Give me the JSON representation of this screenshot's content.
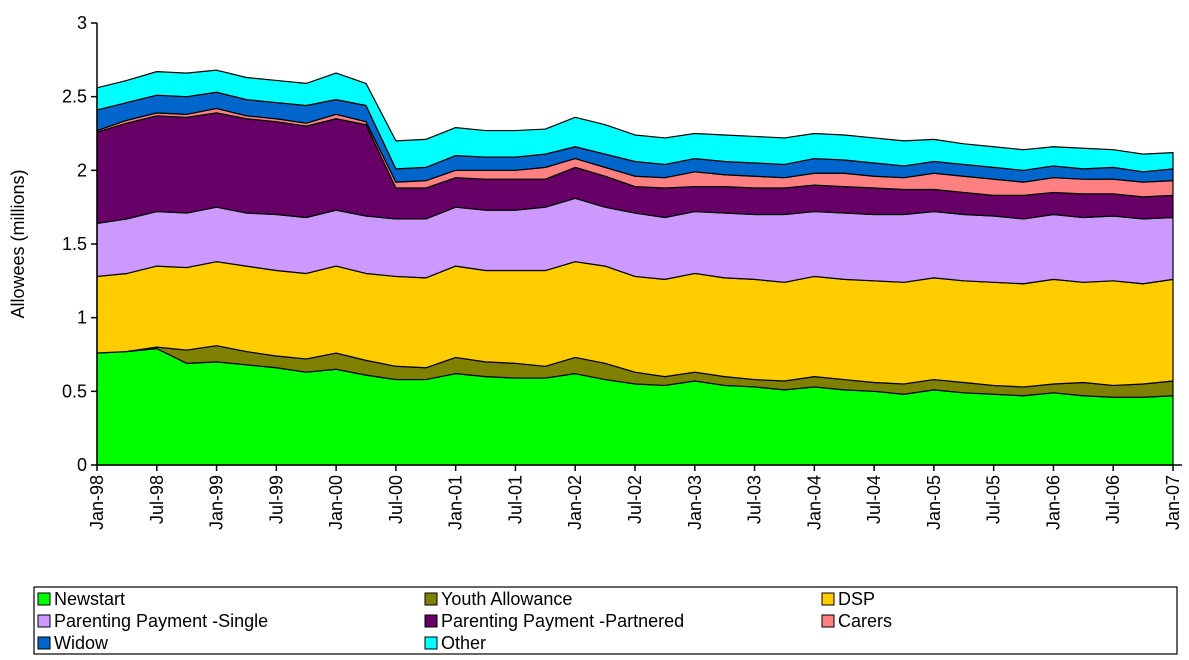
{
  "chart_data": {
    "type": "stacked-area",
    "y_label": "Allowees (millions)",
    "categories": [
      "Jan-98",
      null,
      "Jul-98",
      null,
      "Jan-99",
      null,
      "Jul-99",
      null,
      "Jan-00",
      null,
      "Jul-00",
      null,
      "Jan-01",
      null,
      "Jul-01",
      null,
      "Jan-02",
      null,
      "Jul-02",
      null,
      "Jan-03",
      null,
      "Jul-03",
      null,
      "Jan-04",
      null,
      "Jul-04",
      null,
      "Jan-05",
      null,
      "Jul-05",
      null,
      "Jan-06",
      null,
      "Jul-06",
      null,
      "Jan-07"
    ],
    "ylim": [
      0,
      3
    ],
    "yticks": [
      0,
      0.5,
      1,
      1.5,
      2,
      2.5,
      3
    ],
    "grid": false,
    "series": [
      {
        "name": "Newstart",
        "color": "#00ff00",
        "values": [
          0.76,
          0.77,
          0.79,
          0.69,
          0.7,
          0.68,
          0.66,
          0.63,
          0.65,
          0.61,
          0.58,
          0.58,
          0.62,
          0.6,
          0.59,
          0.59,
          0.62,
          0.58,
          0.55,
          0.54,
          0.57,
          0.54,
          0.53,
          0.51,
          0.53,
          0.51,
          0.5,
          0.48,
          0.51,
          0.49,
          0.48,
          0.47,
          0.49,
          0.47,
          0.46,
          0.46,
          0.47
        ]
      },
      {
        "name": "Youth Allowance",
        "color": "#808000",
        "values": [
          0.0,
          0.0,
          0.01,
          0.09,
          0.11,
          0.09,
          0.08,
          0.09,
          0.11,
          0.1,
          0.09,
          0.08,
          0.11,
          0.1,
          0.1,
          0.08,
          0.11,
          0.11,
          0.08,
          0.06,
          0.06,
          0.06,
          0.05,
          0.06,
          0.07,
          0.07,
          0.06,
          0.07,
          0.07,
          0.07,
          0.06,
          0.06,
          0.06,
          0.09,
          0.08,
          0.09,
          0.1
        ]
      },
      {
        "name": "DSP",
        "color": "#ffcc00",
        "values": [
          0.52,
          0.53,
          0.55,
          0.56,
          0.57,
          0.58,
          0.58,
          0.58,
          0.59,
          0.59,
          0.61,
          0.61,
          0.62,
          0.62,
          0.63,
          0.65,
          0.65,
          0.66,
          0.65,
          0.66,
          0.67,
          0.67,
          0.68,
          0.67,
          0.68,
          0.68,
          0.69,
          0.69,
          0.69,
          0.69,
          0.7,
          0.7,
          0.71,
          0.68,
          0.71,
          0.68,
          0.69
        ]
      },
      {
        "name": "Parenting Payment -Single",
        "color": "#cc99ff",
        "values": [
          0.36,
          0.37,
          0.37,
          0.37,
          0.37,
          0.36,
          0.38,
          0.38,
          0.38,
          0.39,
          0.39,
          0.4,
          0.4,
          0.41,
          0.41,
          0.43,
          0.43,
          0.4,
          0.43,
          0.42,
          0.42,
          0.44,
          0.44,
          0.46,
          0.44,
          0.45,
          0.45,
          0.46,
          0.45,
          0.45,
          0.45,
          0.44,
          0.44,
          0.44,
          0.44,
          0.44,
          0.42
        ]
      },
      {
        "name": "Parenting Payment -Partnered",
        "color": "#660066",
        "values": [
          0.62,
          0.65,
          0.65,
          0.65,
          0.64,
          0.64,
          0.63,
          0.62,
          0.62,
          0.62,
          0.21,
          0.21,
          0.2,
          0.21,
          0.21,
          0.19,
          0.21,
          0.21,
          0.18,
          0.2,
          0.17,
          0.18,
          0.18,
          0.18,
          0.18,
          0.18,
          0.18,
          0.17,
          0.15,
          0.15,
          0.14,
          0.16,
          0.15,
          0.16,
          0.15,
          0.15,
          0.15
        ]
      },
      {
        "name": "Carers",
        "color": "#ff8080",
        "values": [
          0.01,
          0.02,
          0.02,
          0.02,
          0.03,
          0.02,
          0.02,
          0.02,
          0.03,
          0.02,
          0.04,
          0.05,
          0.05,
          0.06,
          0.06,
          0.08,
          0.06,
          0.06,
          0.07,
          0.07,
          0.1,
          0.08,
          0.08,
          0.07,
          0.08,
          0.09,
          0.08,
          0.08,
          0.11,
          0.11,
          0.11,
          0.09,
          0.1,
          0.1,
          0.1,
          0.1,
          0.1
        ]
      },
      {
        "name": "Widow",
        "color": "#0066cc",
        "values": [
          0.14,
          0.12,
          0.12,
          0.12,
          0.11,
          0.11,
          0.11,
          0.12,
          0.1,
          0.11,
          0.09,
          0.09,
          0.1,
          0.09,
          0.09,
          0.09,
          0.08,
          0.09,
          0.1,
          0.09,
          0.09,
          0.09,
          0.09,
          0.09,
          0.1,
          0.09,
          0.09,
          0.08,
          0.08,
          0.08,
          0.08,
          0.08,
          0.08,
          0.07,
          0.08,
          0.07,
          0.08
        ]
      },
      {
        "name": "Other",
        "color": "#00ffff",
        "values": [
          0.15,
          0.15,
          0.16,
          0.16,
          0.15,
          0.15,
          0.15,
          0.15,
          0.18,
          0.15,
          0.19,
          0.19,
          0.19,
          0.18,
          0.18,
          0.17,
          0.2,
          0.2,
          0.18,
          0.18,
          0.17,
          0.18,
          0.18,
          0.18,
          0.17,
          0.17,
          0.17,
          0.17,
          0.15,
          0.14,
          0.14,
          0.14,
          0.13,
          0.14,
          0.12,
          0.12,
          0.11
        ]
      }
    ]
  }
}
